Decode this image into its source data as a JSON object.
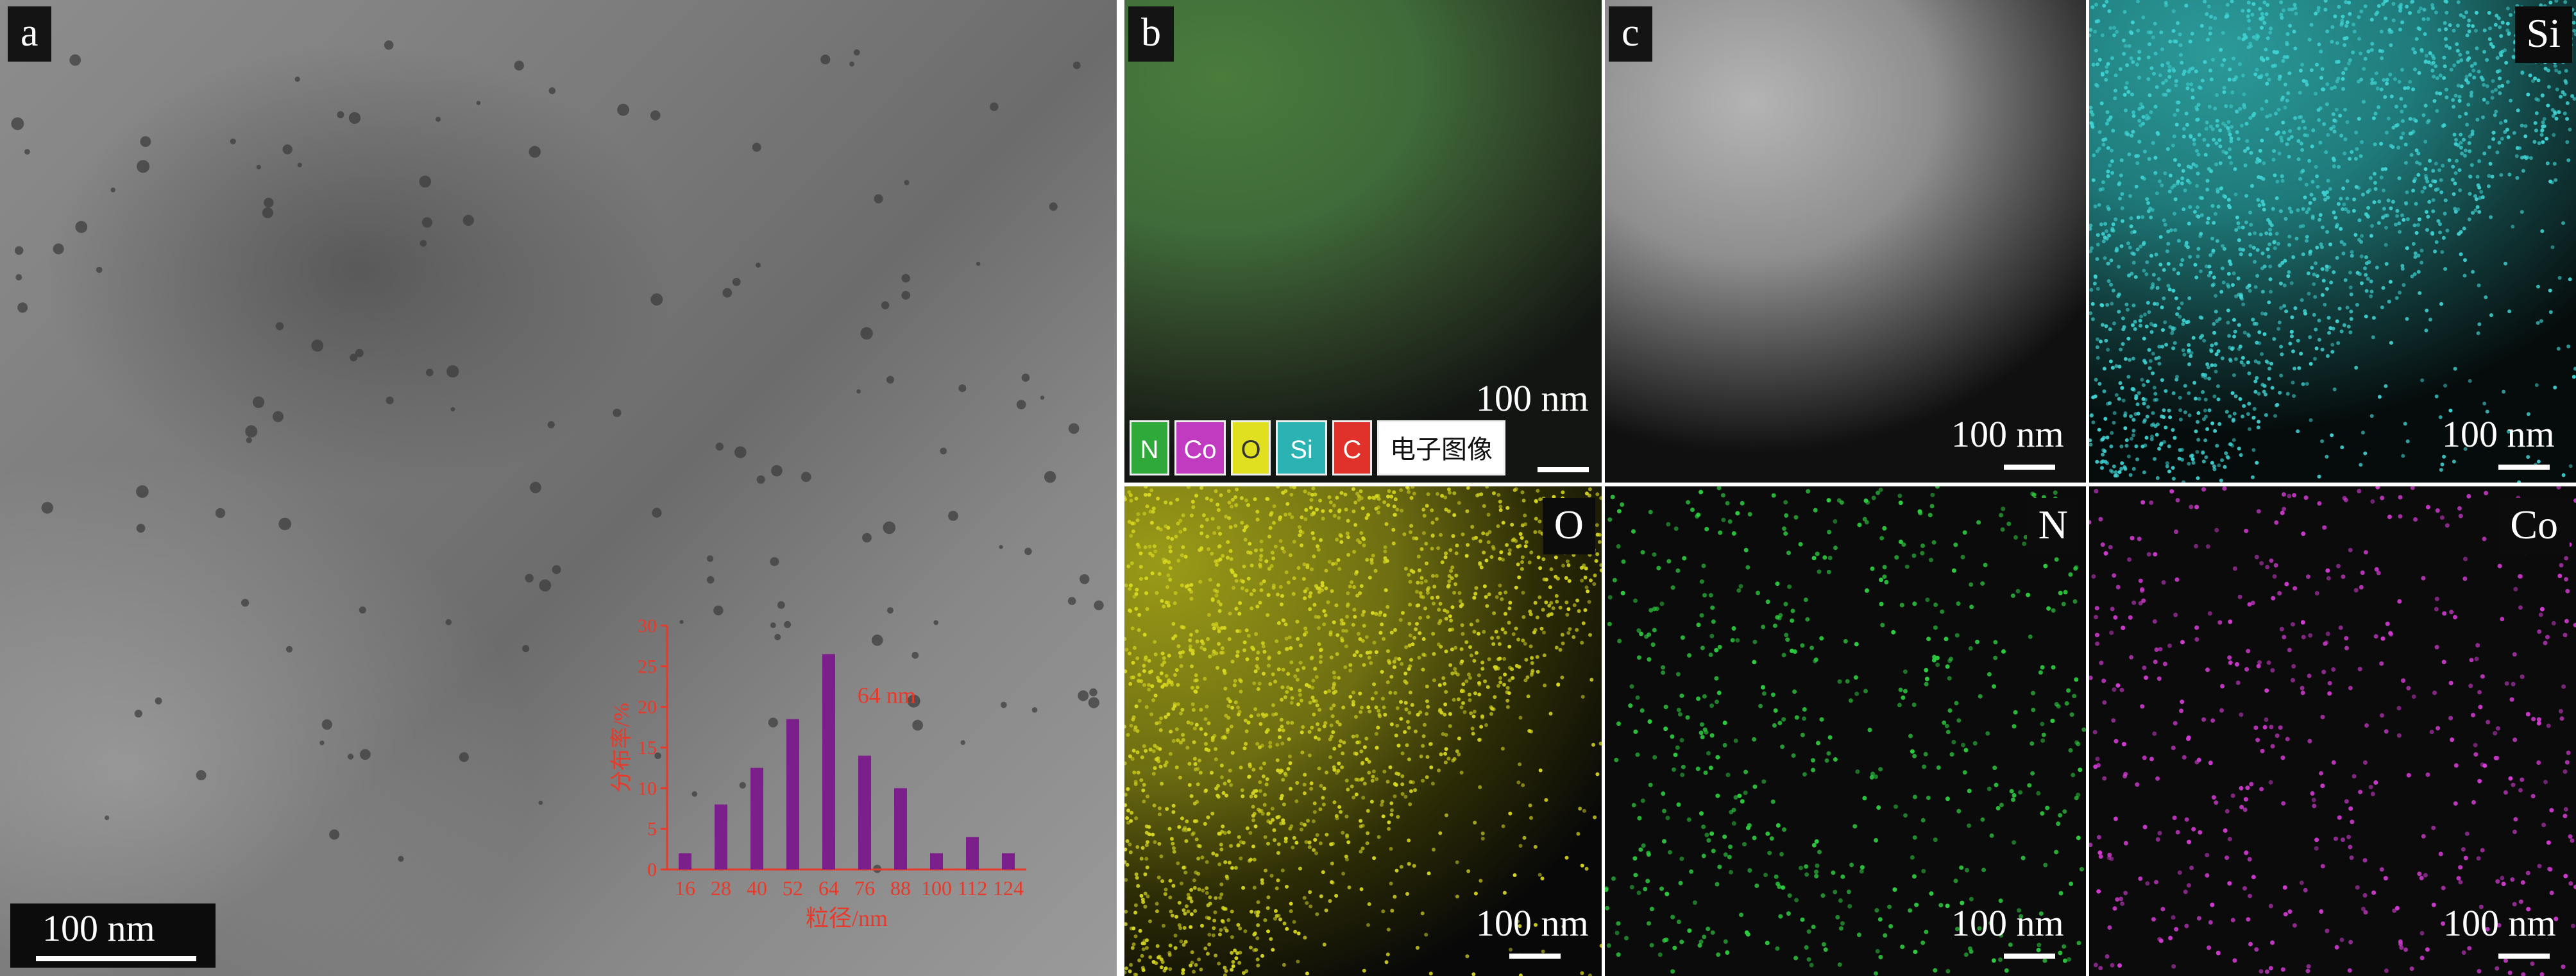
{
  "panel_a": {
    "letter": "a",
    "scale": "100 nm",
    "chart_data": {
      "type": "bar",
      "categories": [
        "16",
        "28",
        "40",
        "52",
        "64",
        "76",
        "88",
        "100",
        "112",
        "124"
      ],
      "values": [
        2,
        8,
        12.5,
        18.5,
        26.5,
        14,
        10,
        2,
        4,
        2
      ],
      "ylabel": "分布率/%",
      "xlabel": "粒径/nm",
      "ylim": [
        0,
        30
      ],
      "yticks": [
        0,
        5,
        10,
        15,
        20,
        25,
        30
      ],
      "annotation": "64 nm",
      "bar_color": "#7b1f8a",
      "axis_color": "#e83a2a"
    }
  },
  "panel_b": {
    "letter": "b",
    "scale": "100 nm",
    "legend": [
      {
        "label": "N",
        "color": "#2faa3a"
      },
      {
        "label": "Co",
        "color": "#c03bbf"
      },
      {
        "label": "O",
        "color": "#e0e020"
      },
      {
        "label": "Si",
        "color": "#2bb3b3"
      },
      {
        "label": "C",
        "color": "#e0322a"
      },
      {
        "label": "电子图像",
        "color": "#ffffff"
      }
    ]
  },
  "panel_c": {
    "letter": "c",
    "scale": "100 nm"
  },
  "panel_si": {
    "label": "Si",
    "scale": "100 nm",
    "color": "#3fd2d2"
  },
  "panel_o": {
    "label": "O",
    "scale": "100 nm",
    "color": "#d8d820"
  },
  "panel_n": {
    "label": "N",
    "scale": "100 nm",
    "color": "#2ecc40"
  },
  "panel_co": {
    "label": "Co",
    "scale": "100 nm",
    "color": "#d03ad0"
  }
}
